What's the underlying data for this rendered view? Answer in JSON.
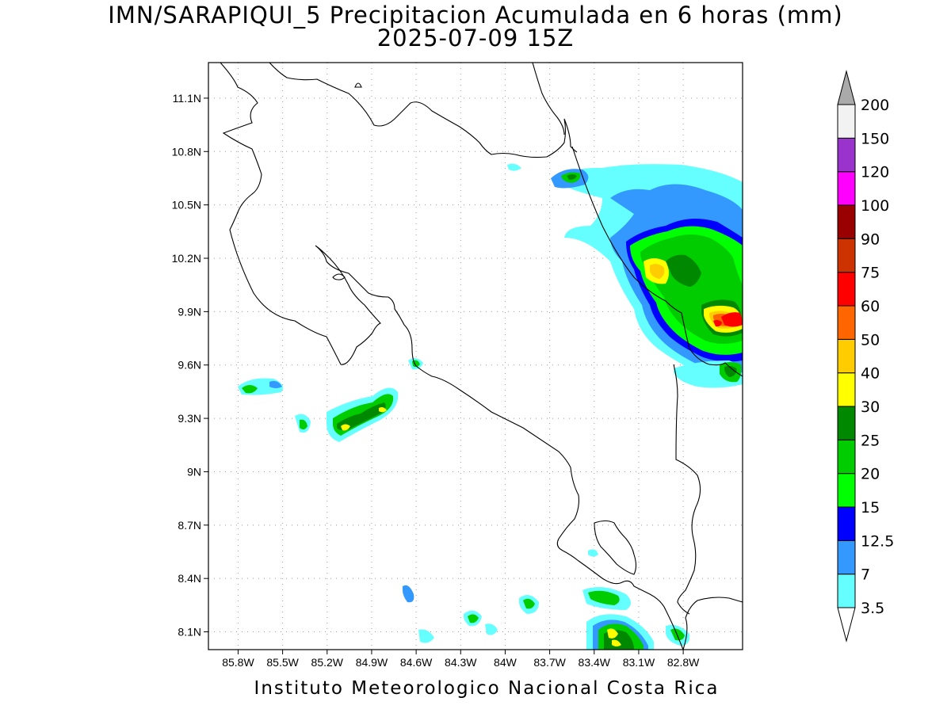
{
  "title_line1": "IMN/SARAPIQUI_5 Precipitacion Acumulada en 6 horas (mm)",
  "title_line2": "2025-07-09 15Z",
  "credit": "Instituto Meteorologico Nacional Costa Rica",
  "map": {
    "lon_range": [
      -86.0,
      -82.4
    ],
    "lat_range": [
      8.0,
      11.3
    ],
    "lon_ticks": [
      "85.8W",
      "85.5W",
      "85.2W",
      "84.9W",
      "84.6W",
      "84.3W",
      "84W",
      "83.7W",
      "83.4W",
      "83.1W",
      "82.8W"
    ],
    "lat_ticks": [
      "8.1N",
      "8.4N",
      "8.7N",
      "9N",
      "9.3N",
      "9.6N",
      "9.9N",
      "10.2N",
      "10.5N",
      "10.8N",
      "11.1N"
    ],
    "gridlines": "dotted"
  },
  "colorbar": {
    "levels": [
      "3.5",
      "7",
      "12.5",
      "15",
      "20",
      "25",
      "30",
      "40",
      "50",
      "60",
      "75",
      "90",
      "100",
      "120",
      "150",
      "200"
    ],
    "colors": [
      "#66ffff",
      "#3399ff",
      "#0000ff",
      "#00ff00",
      "#00cc00",
      "#008800",
      "#ffff00",
      "#ffcc00",
      "#ff6600",
      "#ff0000",
      "#cc3300",
      "#990000",
      "#ff00ff",
      "#9933cc",
      "#f2f2f2"
    ],
    "over_color": "#aaaaaa",
    "under_color": "#ffffff"
  }
}
